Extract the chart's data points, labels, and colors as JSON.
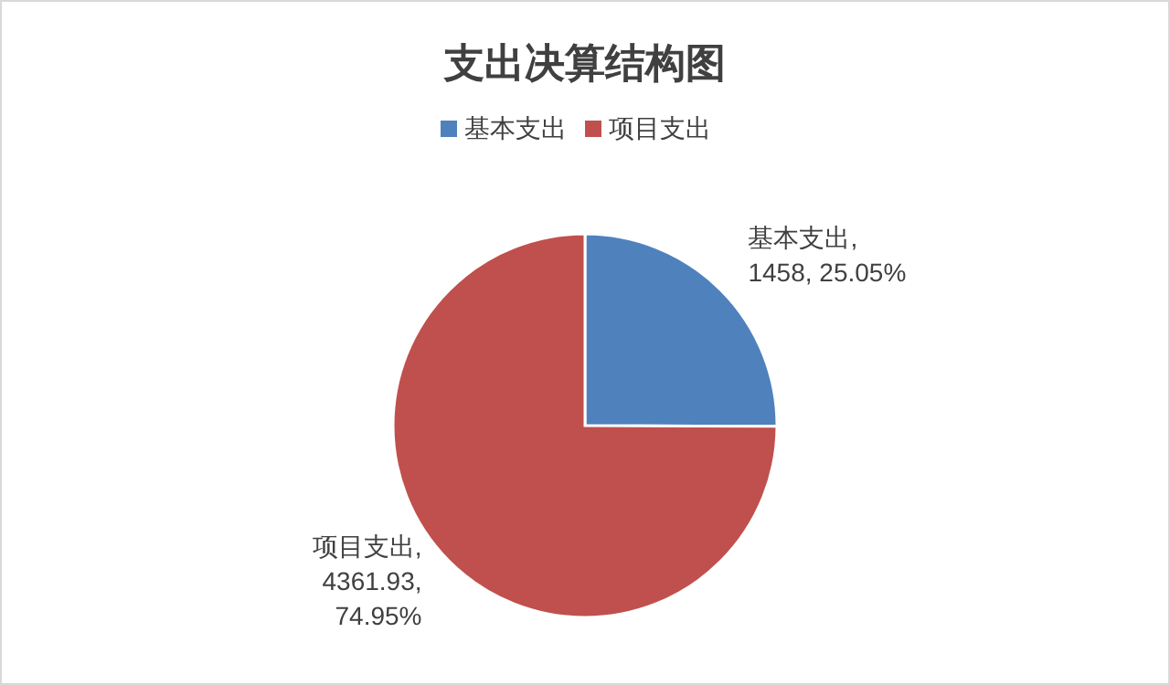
{
  "chart_data": {
    "type": "pie",
    "title": "支出决算结构图",
    "categories": [
      "基本支出",
      "项目支出"
    ],
    "values": [
      1458,
      4361.93
    ],
    "colors": [
      "#4f81bd",
      "#c0504d"
    ],
    "value_labels": [
      "基本支出,\n1458, 25.05%",
      "项目支出,\n4361.93,\n74.95%"
    ],
    "legend": "top"
  }
}
